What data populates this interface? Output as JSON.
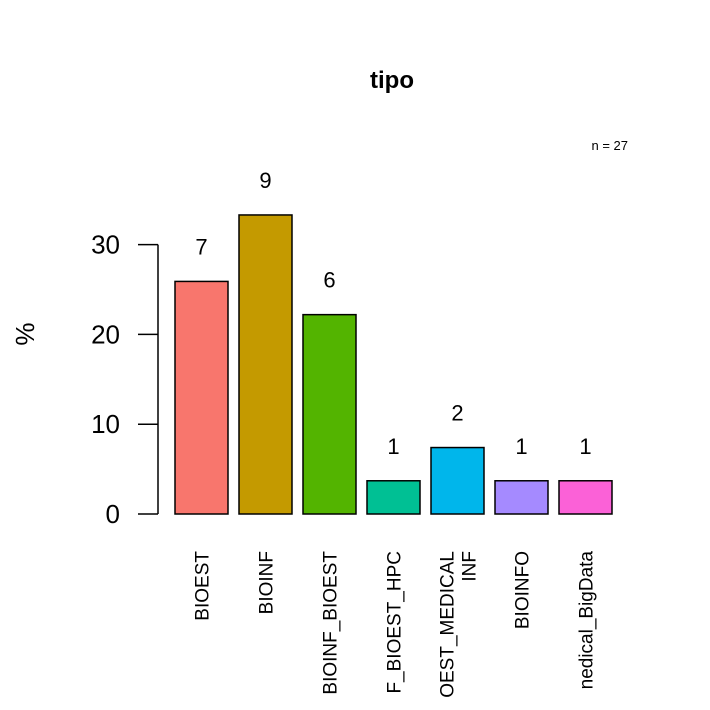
{
  "chart_data": {
    "type": "bar",
    "title": "tipo",
    "note": "n = 27",
    "ylabel": "%",
    "xlabel": "",
    "ylim": [
      0,
      30
    ],
    "yticks": [
      0,
      10,
      20,
      30
    ],
    "grid": false,
    "categories": [
      [
        "BIOEST"
      ],
      [
        "BIOINF"
      ],
      [
        "BIOINF_BIOEST"
      ],
      [
        "F_BIOEST_HPC"
      ],
      [
        "OEST_MEDICAL",
        "INF"
      ],
      [
        "BIOINFO"
      ],
      [
        "nedical_BigData"
      ]
    ],
    "values": [
      25.9,
      33.3,
      22.2,
      3.7,
      7.4,
      3.7,
      3.7
    ],
    "counts": [
      "7",
      "9",
      "6",
      "1",
      "2",
      "1",
      "1"
    ],
    "colors": [
      "#F8766D",
      "#C49A00",
      "#53B400",
      "#00C094",
      "#00B6EB",
      "#A58AFF",
      "#FB61D7"
    ]
  }
}
